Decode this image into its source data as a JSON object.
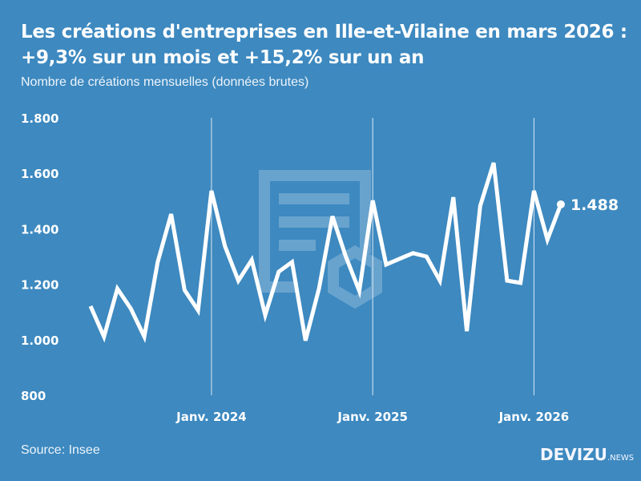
{
  "header": {
    "title_line1": "Les créations d'entreprises en Ille-et-Vilaine en mars 2026 :",
    "title_line2": "+9,3% sur un mois et +15,2% sur un an",
    "subtitle": "Nombre de créations mensuelles (données brutes)"
  },
  "footer": {
    "source": "Source: Insee",
    "logo": "DEVIZU",
    "logo_suffix": ".NEWS"
  },
  "colors": {
    "background": "#3d89c0",
    "line": "#ffffff"
  },
  "chart_data": {
    "type": "line",
    "title": "Les créations d'entreprises en Ille-et-Vilaine en mars 2026 : +9,3% sur un mois et +15,2% sur un an",
    "ylim": [
      800,
      1800
    ],
    "yticks": [
      800,
      1000,
      1200,
      1400,
      1600,
      1800
    ],
    "ytick_labels": [
      "800",
      "1.000",
      "1.200",
      "1.400",
      "1.600",
      "1.800"
    ],
    "xtick_labels": [
      {
        "label": "Janv. 2024",
        "month": "2024-01"
      },
      {
        "label": "Janv. 2025",
        "month": "2025-01"
      },
      {
        "label": "Janv. 2026",
        "month": "2026-01"
      }
    ],
    "grid": "vertical lines at January",
    "x": [
      "2023-04",
      "2023-05",
      "2023-06",
      "2023-07",
      "2023-08",
      "2023-09",
      "2023-10",
      "2023-11",
      "2023-12",
      "2024-01",
      "2024-02",
      "2024-03",
      "2024-04",
      "2024-05",
      "2024-06",
      "2024-07",
      "2024-08",
      "2024-09",
      "2024-10",
      "2024-11",
      "2024-12",
      "2025-01",
      "2025-02",
      "2025-03",
      "2025-04",
      "2025-05",
      "2025-06",
      "2025-07",
      "2025-08",
      "2025-09",
      "2025-10",
      "2025-11",
      "2025-12",
      "2026-01",
      "2026-02",
      "2026-03"
    ],
    "values": [
      1121,
      1011,
      1184,
      1112,
      1011,
      1280,
      1453,
      1179,
      1106,
      1537,
      1338,
      1213,
      1288,
      1089,
      1245,
      1280,
      997,
      1184,
      1445,
      1300,
      1176,
      1502,
      1271,
      1292,
      1312,
      1300,
      1213,
      1514,
      1031,
      1482,
      1638,
      1213,
      1205,
      1537,
      1361,
      1488
    ],
    "last_label": "1.488"
  }
}
